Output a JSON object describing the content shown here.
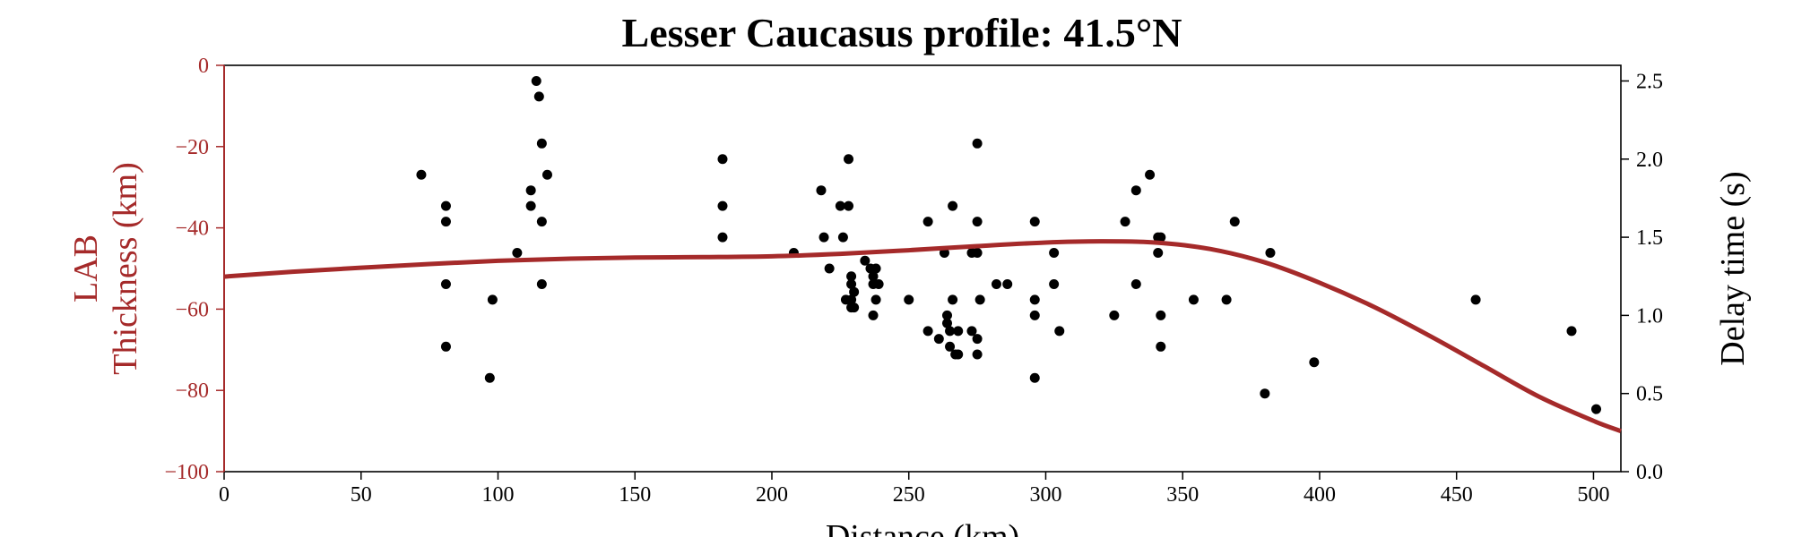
{
  "chart_data": {
    "type": "line+scatter",
    "title": "Lesser Caucasus profile: 41.5°N",
    "xlabel": "Distance (km)",
    "ylabel_left": [
      "LAB",
      "Thickness (km)"
    ],
    "ylabel_right": "Delay time (s)",
    "xlim": [
      0,
      510
    ],
    "ylim_left": [
      -100,
      0
    ],
    "ylim_right": [
      0,
      2.6
    ],
    "xticks": [
      0,
      50,
      100,
      150,
      200,
      250,
      300,
      350,
      400,
      450,
      500
    ],
    "yticks_left": [
      0,
      -20,
      -40,
      -60,
      -80,
      -100
    ],
    "yticks_right": [
      0.0,
      0.5,
      1.0,
      1.5,
      2.0,
      2.5
    ],
    "colors": {
      "curve": "#a52a2a",
      "left_axis": "#a52a2a",
      "points": "#000000"
    },
    "grid": false,
    "series": [
      {
        "kind": "line",
        "axis": "left",
        "x": [
          0,
          25,
          50,
          75,
          100,
          125,
          150,
          175,
          200,
          225,
          250,
          275,
          300,
          320,
          340,
          360,
          380,
          400,
          420,
          440,
          460,
          480,
          500,
          510
        ],
        "y": [
          -52,
          -50.8,
          -49.8,
          -48.9,
          -48.1,
          -47.6,
          -47.3,
          -47.2,
          -47,
          -46.4,
          -45.5,
          -44.5,
          -43.6,
          -43.3,
          -43.6,
          -45.2,
          -48.5,
          -53.5,
          -59.5,
          -66.5,
          -74,
          -81.5,
          -87.5,
          -90
        ]
      },
      {
        "kind": "scatter",
        "axis": "right",
        "x": [
          72,
          81,
          81,
          81,
          81,
          97,
          98,
          107,
          112,
          112,
          114,
          115,
          116,
          116,
          116,
          118,
          182,
          182,
          182,
          208,
          218,
          219,
          221,
          225,
          226,
          227,
          228,
          228,
          229,
          229,
          229,
          229,
          230,
          230,
          234,
          236,
          237,
          237,
          237,
          238,
          238,
          239,
          250,
          257,
          257,
          261,
          263,
          264,
          264,
          265,
          265,
          266,
          266,
          267,
          268,
          268,
          273,
          273,
          275,
          275,
          275,
          275,
          275,
          276,
          282,
          286,
          296,
          296,
          296,
          296,
          303,
          303,
          305,
          325,
          329,
          333,
          333,
          338,
          341,
          341,
          342,
          342,
          342,
          354,
          366,
          369,
          380,
          382,
          398,
          457,
          492,
          501
        ],
        "y": [
          1.9,
          1.7,
          1.6,
          1.2,
          0.8,
          0.6,
          1.1,
          1.4,
          1.7,
          1.8,
          2.5,
          2.4,
          2.1,
          1.6,
          1.2,
          1.9,
          2.0,
          1.7,
          1.5,
          1.4,
          1.8,
          1.5,
          1.3,
          1.7,
          1.5,
          1.1,
          2.0,
          1.7,
          1.25,
          1.2,
          1.1,
          1.05,
          1.05,
          1.15,
          1.35,
          1.3,
          1.25,
          1.2,
          1.0,
          1.3,
          1.1,
          1.2,
          1.1,
          1.6,
          0.9,
          0.85,
          1.4,
          1.0,
          0.95,
          0.9,
          0.8,
          1.7,
          1.1,
          0.75,
          0.75,
          0.9,
          1.4,
          0.9,
          2.1,
          1.6,
          1.4,
          0.85,
          0.75,
          1.1,
          1.2,
          1.2,
          1.6,
          1.1,
          1.0,
          0.6,
          1.4,
          1.2,
          0.9,
          1.0,
          1.6,
          1.8,
          1.2,
          1.9,
          1.5,
          1.4,
          1.5,
          1.0,
          0.8,
          1.1,
          1.1,
          1.6,
          0.5,
          1.4,
          0.7,
          1.1,
          0.9,
          0.4
        ]
      }
    ]
  }
}
